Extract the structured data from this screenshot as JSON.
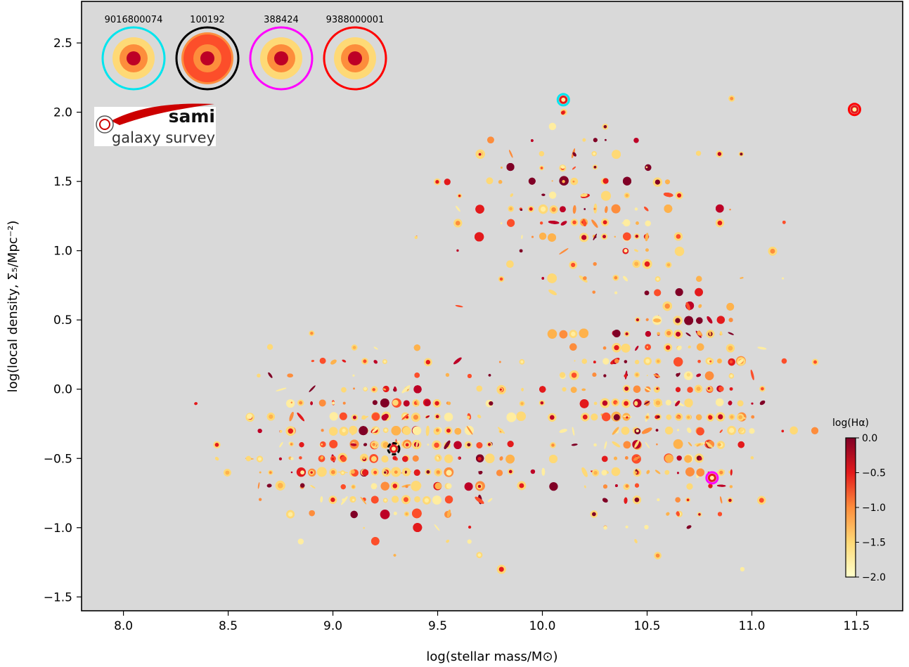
{
  "chart_data": {
    "type": "scatter",
    "xlabel": "log(stellar mass/M⊙)",
    "ylabel": "log(local density, Σ₅/Mpc⁻²)",
    "xlim": [
      7.8,
      11.72
    ],
    "ylim": [
      -1.6,
      2.8
    ],
    "x_ticks": [
      "8.0",
      "8.5",
      "9.0",
      "9.5",
      "10.0",
      "10.5",
      "11.0",
      "11.5"
    ],
    "y_ticks": [
      "−1.5",
      "−1.0",
      "−0.5",
      "0.0",
      "0.5",
      "1.0",
      "1.5",
      "2.0",
      "2.5"
    ],
    "background": "#d9d9d9",
    "grid": false,
    "colorbar": {
      "label": "log(Hα)",
      "range": [
        -2.0,
        0.0
      ],
      "ticks": [
        "0.0",
        "−0.5",
        "−1.0",
        "−1.5",
        "−2.0"
      ],
      "colormap": "YlOrRd",
      "colors": [
        "#ffffcc",
        "#fed976",
        "#fd8d3c",
        "#e31a1c",
        "#800026"
      ],
      "placement": "bottom-right"
    },
    "highlighted": [
      {
        "id": "9016800074",
        "x": 10.1,
        "y": 2.09,
        "color": "#00e5ee"
      },
      {
        "id": "100192",
        "x": 9.29,
        "y": -0.43,
        "color": "#000000"
      },
      {
        "id": "388424",
        "x": 10.81,
        "y": -0.64,
        "color": "#ff00ff"
      },
      {
        "id": "9388000001",
        "x": 11.49,
        "y": 2.02,
        "color": "#ff0000"
      }
    ],
    "insets": [
      {
        "label": "9016800074",
        "color": "#00e5ee"
      },
      {
        "label": "100192",
        "color": "#000000"
      },
      {
        "label": "388424",
        "color": "#ff00ff"
      },
      {
        "label": "9388000001",
        "color": "#ff0000"
      }
    ],
    "n_galaxies_approx": 2000
  },
  "logo": {
    "word": "sami",
    "tagline": "galaxy survey",
    "accent": "#cc0000"
  }
}
